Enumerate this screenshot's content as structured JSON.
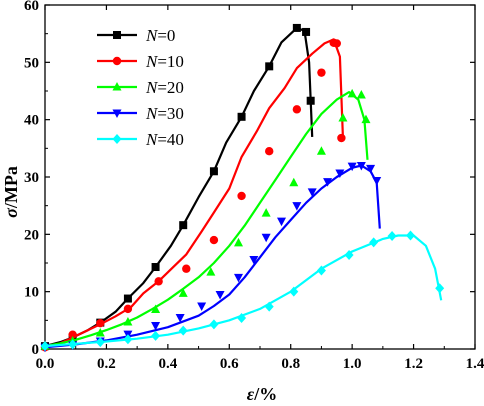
{
  "chart_data": {
    "type": "line",
    "xlabel_symbol": "ε",
    "xlabel_unit": "/%",
    "ylabel_symbol": "σ",
    "ylabel_unit": "/MPa",
    "xlim": [
      0,
      1.4
    ],
    "ylim": [
      0,
      60
    ],
    "xticks": [
      "0.0",
      "0.2",
      "0.4",
      "0.6",
      "0.8",
      "1.0",
      "1.2",
      "1.4"
    ],
    "yticks": [
      "0",
      "10",
      "20",
      "30",
      "40",
      "50",
      "60"
    ],
    "legend_position": "top-left",
    "series": [
      {
        "name": "N=0",
        "name_var": "N",
        "name_val": "=0",
        "color": "#000000",
        "marker": "square",
        "x": [
          0.0,
          0.05,
          0.09,
          0.14,
          0.18,
          0.23,
          0.27,
          0.32,
          0.36,
          0.41,
          0.45,
          0.5,
          0.55,
          0.59,
          0.64,
          0.68,
          0.73,
          0.77,
          0.82,
          0.845,
          0.86,
          0.87
        ],
        "y": [
          0.5,
          1.2,
          2.0,
          3.3,
          4.6,
          6.5,
          8.8,
          11.5,
          14.3,
          18.0,
          21.6,
          26.5,
          31.0,
          36.0,
          40.5,
          45.0,
          49.3,
          53.5,
          56.0,
          55.5,
          50.0,
          37.0
        ],
        "markers_x": [
          0.0,
          0.09,
          0.18,
          0.27,
          0.36,
          0.45,
          0.55,
          0.64,
          0.73,
          0.82,
          0.85,
          0.865
        ],
        "markers_y": [
          0.5,
          2.0,
          4.6,
          8.8,
          14.3,
          21.6,
          31.0,
          40.5,
          49.3,
          56.0,
          55.3,
          43.3
        ]
      },
      {
        "name": "N=10",
        "name_var": "N",
        "name_val": "=10",
        "color": "#ff0000",
        "marker": "circle",
        "x": [
          0.0,
          0.05,
          0.09,
          0.14,
          0.18,
          0.23,
          0.28,
          0.32,
          0.37,
          0.41,
          0.46,
          0.51,
          0.55,
          0.6,
          0.64,
          0.69,
          0.73,
          0.78,
          0.82,
          0.87,
          0.91,
          0.94,
          0.96,
          0.97
        ],
        "y": [
          0.3,
          1.0,
          2.0,
          3.3,
          4.3,
          5.7,
          7.3,
          9.7,
          11.8,
          13.9,
          16.5,
          20.5,
          23.8,
          28.0,
          33.5,
          38.0,
          42.0,
          45.5,
          49.0,
          51.5,
          53.3,
          54.0,
          51.0,
          37.0
        ],
        "markers_x": [
          0.0,
          0.09,
          0.18,
          0.27,
          0.37,
          0.46,
          0.55,
          0.64,
          0.73,
          0.82,
          0.9,
          0.94,
          0.95,
          0.965
        ],
        "markers_y": [
          0.3,
          2.5,
          4.5,
          7.0,
          11.8,
          14.0,
          19.0,
          26.7,
          34.5,
          41.8,
          48.2,
          53.4,
          53.3,
          36.8
        ]
      },
      {
        "name": "N=20",
        "name_var": "N",
        "name_val": "=20",
        "color": "#00ff00",
        "marker": "triangle",
        "x": [
          0.0,
          0.05,
          0.1,
          0.15,
          0.2,
          0.25,
          0.3,
          0.35,
          0.4,
          0.45,
          0.5,
          0.55,
          0.6,
          0.65,
          0.7,
          0.75,
          0.8,
          0.85,
          0.9,
          0.95,
          0.99,
          1.02,
          1.04,
          1.05
        ],
        "y": [
          0.5,
          1.0,
          1.6,
          2.4,
          3.3,
          4.3,
          5.5,
          7.0,
          8.6,
          10.5,
          12.5,
          15.0,
          18.0,
          21.5,
          25.5,
          29.5,
          33.5,
          37.5,
          41.0,
          43.5,
          44.8,
          43.5,
          40.0,
          33.0
        ],
        "markers_x": [
          0.0,
          0.09,
          0.18,
          0.27,
          0.36,
          0.45,
          0.54,
          0.63,
          0.72,
          0.81,
          0.9,
          0.97,
          1.0,
          1.03,
          1.045
        ],
        "markers_y": [
          0.5,
          1.4,
          2.8,
          4.7,
          6.9,
          9.7,
          13.4,
          18.5,
          23.7,
          29.0,
          34.5,
          40.3,
          44.5,
          44.3,
          40.0
        ]
      },
      {
        "name": "N=30",
        "name_var": "N",
        "name_val": "=30",
        "color": "#0000ff",
        "marker": "triangle-down",
        "x": [
          0.0,
          0.1,
          0.2,
          0.3,
          0.4,
          0.5,
          0.55,
          0.6,
          0.65,
          0.7,
          0.75,
          0.8,
          0.85,
          0.9,
          0.95,
          1.0,
          1.03,
          1.06,
          1.08,
          1.09
        ],
        "y": [
          0.3,
          0.8,
          1.5,
          2.5,
          3.8,
          5.8,
          7.5,
          9.5,
          12.5,
          16.0,
          19.5,
          22.5,
          25.5,
          28.0,
          30.0,
          31.6,
          32.0,
          31.0,
          29.0,
          21.0
        ],
        "markers_x": [
          0.0,
          0.09,
          0.18,
          0.27,
          0.36,
          0.44,
          0.51,
          0.57,
          0.63,
          0.68,
          0.72,
          0.77,
          0.82,
          0.87,
          0.92,
          0.96,
          1.0,
          1.03,
          1.06,
          1.08
        ],
        "markers_y": [
          0.3,
          0.7,
          1.4,
          2.6,
          4.1,
          5.5,
          7.5,
          9.5,
          12.5,
          15.6,
          19.5,
          22.3,
          25.0,
          27.4,
          29.2,
          30.7,
          31.9,
          32.0,
          31.5,
          29.4
        ]
      },
      {
        "name": "N=40",
        "name_var": "N",
        "name_val": "=40",
        "color": "#00ffff",
        "marker": "diamond",
        "x": [
          0.0,
          0.1,
          0.2,
          0.3,
          0.4,
          0.5,
          0.6,
          0.7,
          0.8,
          0.9,
          1.0,
          1.1,
          1.15,
          1.2,
          1.24,
          1.27,
          1.29
        ],
        "y": [
          0.5,
          0.9,
          1.3,
          1.8,
          2.5,
          3.6,
          5.0,
          7.0,
          10.0,
          14.0,
          17.0,
          19.2,
          19.8,
          19.8,
          18.0,
          14.0,
          8.5
        ],
        "markers_x": [
          0.0,
          0.09,
          0.18,
          0.27,
          0.36,
          0.45,
          0.55,
          0.64,
          0.73,
          0.81,
          0.9,
          0.99,
          1.07,
          1.13,
          1.19,
          1.285
        ],
        "markers_y": [
          0.5,
          0.8,
          1.2,
          1.7,
          2.3,
          3.2,
          4.3,
          5.4,
          7.4,
          10.0,
          13.7,
          16.4,
          18.6,
          19.7,
          19.8,
          10.6
        ]
      }
    ]
  }
}
